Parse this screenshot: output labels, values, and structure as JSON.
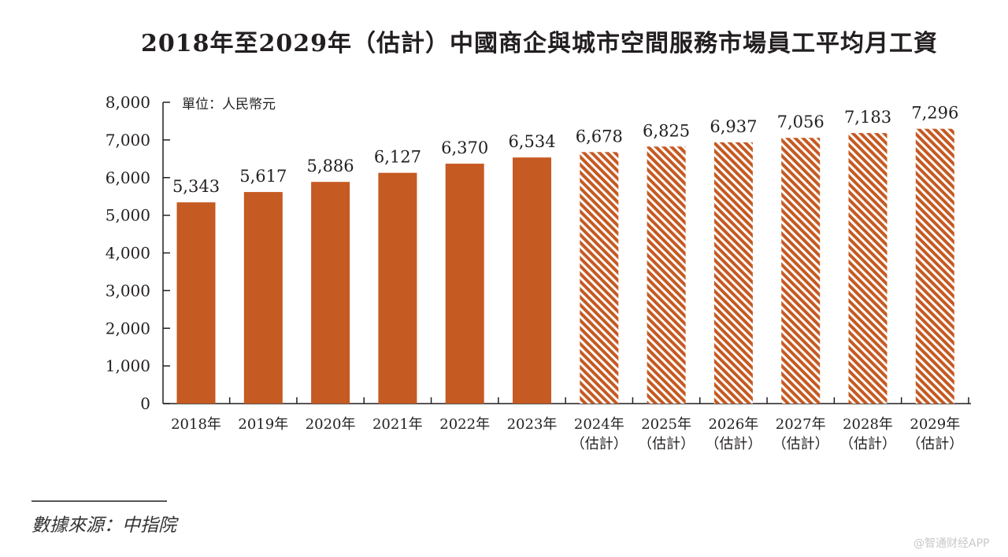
{
  "title": "2018年至2029年（估計）中國商企與城市空間服務市場員工平均月工資",
  "chart_data": {
    "type": "bar",
    "title": "2018年至2029年（估計）中國商企與城市空間服務市場員工平均月工資",
    "unit_label": "單位：人民幣元",
    "categories": [
      [
        "2018年"
      ],
      [
        "2019年"
      ],
      [
        "2020年"
      ],
      [
        "2021年"
      ],
      [
        "2022年"
      ],
      [
        "2023年"
      ],
      [
        "2024年",
        "（估計）"
      ],
      [
        "2025年",
        "（估計）"
      ],
      [
        "2026年",
        "（估計）"
      ],
      [
        "2027年",
        "（估計）"
      ],
      [
        "2028年",
        "（估計）"
      ],
      [
        "2029年",
        "（估計）"
      ]
    ],
    "values": [
      5343,
      5617,
      5886,
      6127,
      6370,
      6534,
      6678,
      6825,
      6937,
      7056,
      7183,
      7296
    ],
    "value_labels": [
      "5,343",
      "5,617",
      "5,886",
      "6,127",
      "6,370",
      "6,534",
      "6,678",
      "6,825",
      "6,937",
      "7,056",
      "7,183",
      "7,296"
    ],
    "estimated": [
      false,
      false,
      false,
      false,
      false,
      false,
      true,
      true,
      true,
      true,
      true,
      true
    ],
    "yticks": [
      0,
      1000,
      2000,
      3000,
      4000,
      5000,
      6000,
      7000,
      8000
    ],
    "ytick_labels": [
      "0",
      "1,000",
      "2,000",
      "3,000",
      "4,000",
      "5,000",
      "6,000",
      "7,000",
      "8,000"
    ],
    "ylim": [
      0,
      8000
    ],
    "xlabel": "",
    "ylabel": "",
    "grid": false,
    "colors": {
      "bar": "#c55a22",
      "hatch_bg": "#ffffff",
      "axis": "#231f20"
    }
  },
  "source": "數據來源：中指院",
  "watermark": "@智通财经APP"
}
